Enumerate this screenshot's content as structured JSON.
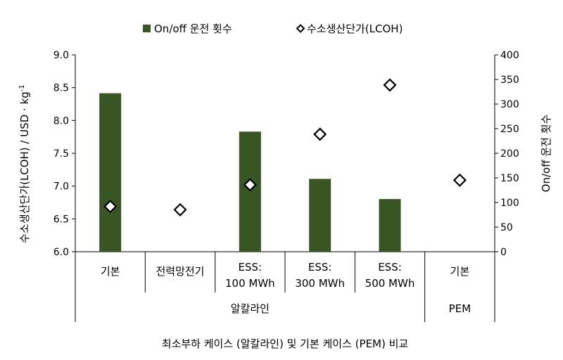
{
  "chart_data": {
    "type": "bar",
    "legend": {
      "position": "top-center",
      "items": [
        {
          "label": "On/off 운전 횟수",
          "marker": "square",
          "color": "#375623"
        },
        {
          "label": "수소생산단가(LCOH)",
          "marker": "diamond",
          "color": "#000000"
        }
      ]
    },
    "categories": [
      "기본",
      "전력망전기",
      "ESS:\n100 MWh",
      "ESS:\n300 MWh",
      "ESS:\n500 MWh",
      "기본"
    ],
    "groups": [
      {
        "label": "알칼라인",
        "span": [
          0,
          4
        ]
      },
      {
        "label": "PEM",
        "span": [
          5,
          5
        ]
      }
    ],
    "xlabel": "최소부하 케이스 (알칼라인)  및 기본 케이스 (PEM) 비교",
    "y_left": {
      "label_main": "수소생산단가(LCOH) / USD · kg",
      "label_sup": "-1",
      "range": [
        6.0,
        9.0
      ],
      "ticks": [
        "6.0",
        "6.5",
        "7.0",
        "7.5",
        "8.0",
        "8.5",
        "9.0"
      ]
    },
    "y_right": {
      "label": "On/off 운전 횟수",
      "range": [
        0,
        400
      ],
      "ticks": [
        "0",
        "50",
        "100",
        "150",
        "200",
        "250",
        "300",
        "350",
        "400"
      ]
    },
    "series": [
      {
        "name": "On/off 운전 횟수",
        "type": "bar",
        "axis": "right",
        "color": "#375623",
        "values": [
          322,
          null,
          244,
          148,
          107,
          null
        ]
      },
      {
        "name": "수소생산단가(LCOH)",
        "type": "scatter",
        "axis": "left",
        "marker": "diamond",
        "values": [
          6.69,
          6.64,
          7.02,
          7.79,
          8.54,
          7.09
        ]
      }
    ],
    "grid": false
  }
}
